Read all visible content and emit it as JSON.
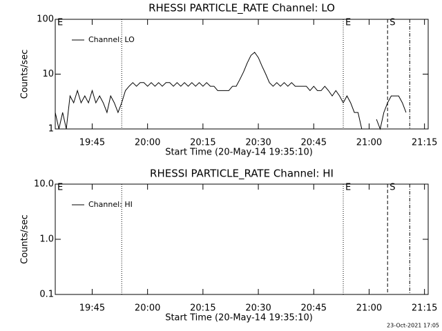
{
  "chart_data": [
    {
      "type": "line",
      "title": "RHESSI PARTICLE_RATE Channel: LO",
      "x_label": "Start Time (20-May-14 19:35:10)",
      "y_label": "Counts/sec",
      "log_y": true,
      "ylim": [
        1,
        100
      ],
      "yticks": [
        1,
        10,
        100
      ],
      "xlim": [
        "19:35",
        "21:16"
      ],
      "xticks": [
        "19:45",
        "20:00",
        "20:15",
        "20:30",
        "20:45",
        "21:00",
        "21:15"
      ],
      "legend": "top-left",
      "markers": [
        {
          "x": "19:53",
          "style": "dotted"
        },
        {
          "x": "20:53",
          "style": "dotted"
        },
        {
          "x": "21:05",
          "style": "dashed"
        },
        {
          "x": "21:11",
          "style": "dashdot"
        }
      ],
      "annotations": [
        {
          "text": "E",
          "x": "19:35"
        },
        {
          "text": "E",
          "x": "20:53"
        },
        {
          "text": "S",
          "x": "21:05"
        }
      ],
      "x": [
        "19:35",
        "19:36",
        "19:37",
        "19:38",
        "19:39",
        "19:40",
        "19:41",
        "19:42",
        "19:43",
        "19:44",
        "19:45",
        "19:46",
        "19:47",
        "19:48",
        "19:49",
        "19:50",
        "19:51",
        "19:52",
        "19:53",
        "19:54",
        "19:55",
        "19:56",
        "19:57",
        "19:58",
        "19:59",
        "20:00",
        "20:01",
        "20:02",
        "20:03",
        "20:04",
        "20:05",
        "20:06",
        "20:07",
        "20:08",
        "20:09",
        "20:10",
        "20:11",
        "20:12",
        "20:13",
        "20:14",
        "20:15",
        "20:16",
        "20:17",
        "20:18",
        "20:19",
        "20:20",
        "20:21",
        "20:22",
        "20:23",
        "20:24",
        "20:25",
        "20:26",
        "20:27",
        "20:28",
        "20:29",
        "20:30",
        "20:31",
        "20:32",
        "20:33",
        "20:34",
        "20:35",
        "20:36",
        "20:37",
        "20:38",
        "20:39",
        "20:40",
        "20:41",
        "20:42",
        "20:43",
        "20:44",
        "20:45",
        "20:46",
        "20:47",
        "20:48",
        "20:49",
        "20:50",
        "20:51",
        "20:52",
        "20:53",
        "20:54",
        "20:55",
        "20:56",
        "20:57",
        "20:58",
        "20:59",
        "21:00",
        "21:01",
        "21:02",
        "21:03",
        "21:04",
        "21:05",
        "21:06",
        "21:07",
        "21:08",
        "21:09",
        "21:10"
      ],
      "series": [
        {
          "name": "Channel: LO",
          "color": "#000000",
          "values": [
            2,
            1,
            2,
            1,
            4,
            3,
            5,
            3,
            4,
            3,
            5,
            3,
            4,
            3,
            2,
            4,
            3,
            2,
            3,
            5,
            6,
            7,
            6,
            7,
            7,
            6,
            7,
            6,
            7,
            6,
            7,
            7,
            6,
            7,
            6,
            7,
            6,
            7,
            6,
            7,
            6,
            7,
            6,
            6,
            5,
            5,
            5,
            5,
            6,
            6,
            8,
            11,
            16,
            22,
            25,
            20,
            14,
            10,
            7,
            6,
            7,
            6,
            7,
            6,
            7,
            6,
            6,
            6,
            6,
            5,
            6,
            5,
            5,
            6,
            5,
            4,
            5,
            4,
            3,
            4,
            3,
            2,
            2,
            1,
            null,
            1,
            null,
            1.5,
            1,
            2,
            3,
            4,
            4,
            4,
            3,
            2
          ]
        }
      ]
    },
    {
      "type": "line",
      "title": "RHESSI PARTICLE_RATE Channel: HI",
      "x_label": "Start Time (20-May-14 19:35:10)",
      "y_label": "Counts/sec",
      "log_y": true,
      "ylim": [
        0.1,
        10
      ],
      "yticks": [
        0.1,
        {
          "value": 1,
          "label": "1.0"
        },
        {
          "value": 10,
          "label": "10.0"
        }
      ],
      "xlim": [
        "19:35",
        "21:16"
      ],
      "xticks": [
        "19:45",
        "20:00",
        "20:15",
        "20:30",
        "20:45",
        "21:00",
        "21:15"
      ],
      "legend": "top-left",
      "markers": [
        {
          "x": "19:53",
          "style": "dotted"
        },
        {
          "x": "20:53",
          "style": "dotted"
        },
        {
          "x": "21:05",
          "style": "dashed"
        },
        {
          "x": "21:11",
          "style": "dashdot"
        }
      ],
      "annotations": [
        {
          "text": "E",
          "x": "19:35"
        },
        {
          "text": "E",
          "x": "20:53"
        },
        {
          "text": "S",
          "x": "21:05"
        }
      ],
      "x": [],
      "series": [
        {
          "name": "Channel: HI",
          "color": "#000000",
          "values": []
        }
      ]
    }
  ],
  "footer": "23-Oct-2021 17:05"
}
